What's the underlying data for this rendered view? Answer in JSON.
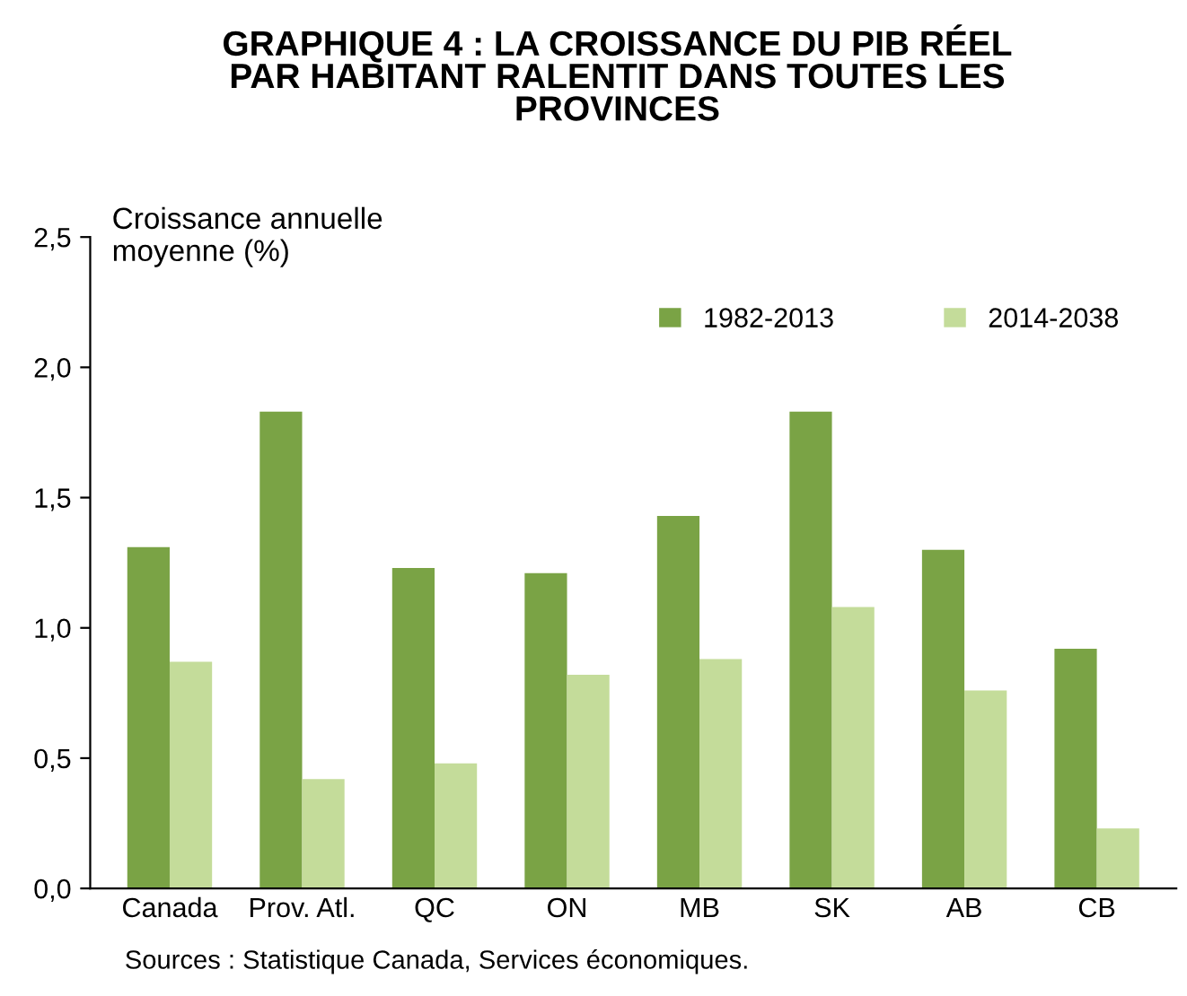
{
  "chart_data": {
    "type": "bar",
    "title": "GRAPHIQUE 4 : LA CROISSANCE DU PIB RÉEL\nPAR HABITANT RALENTIT DANS TOUTES LES\nPROVINCES",
    "ylabel": "Croissance annuelle\nmoyenne (%)",
    "categories": [
      "Canada",
      "Prov. Atl.",
      "QC",
      "ON",
      "MB",
      "SK",
      "AB",
      "CB"
    ],
    "series": [
      {
        "name": "1982-2013",
        "color": "#7aa345",
        "values": [
          1.31,
          1.83,
          1.23,
          1.21,
          1.43,
          1.83,
          1.3,
          0.92
        ]
      },
      {
        "name": "2014-2038",
        "color": "#c4dc9a",
        "values": [
          0.87,
          0.42,
          0.48,
          0.82,
          0.88,
          1.08,
          0.76,
          0.23
        ]
      }
    ],
    "ylim": [
      0,
      2.5
    ],
    "yticks": [
      {
        "value": 0,
        "label": "0,0"
      },
      {
        "value": 0.5,
        "label": "0,5"
      },
      {
        "value": 1,
        "label": "1,0"
      },
      {
        "value": 1.5,
        "label": "1,5"
      },
      {
        "value": 2,
        "label": "2,0"
      },
      {
        "value": 2.5,
        "label": "2,5"
      }
    ],
    "legend": "top right",
    "annotations": [
      "Sources : Statistique Canada, Services économiques."
    ]
  }
}
